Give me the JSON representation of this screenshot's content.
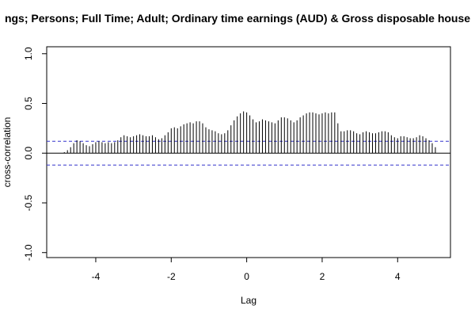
{
  "chart_data": {
    "type": "bar",
    "title": "ngs; Persons; Full Time; Adult; Ordinary time earnings (AUD) & Gross disposable house",
    "xlabel": "Lag",
    "ylabel": "cross-correlation",
    "xlim": [
      -5.3,
      5.4
    ],
    "ylim": [
      -1.05,
      1.07
    ],
    "x_ticks": [
      -4,
      -2,
      0,
      2,
      4
    ],
    "x_tick_labels": [
      "-4",
      "-2",
      "0",
      "2",
      "4"
    ],
    "y_ticks": [
      -1,
      -0.5,
      0,
      0.5,
      1
    ],
    "y_tick_labels": [
      "-1.0",
      "-0.5",
      "0.0",
      "0.5",
      "1.0"
    ],
    "confidence_bound": 0.12,
    "colors": {
      "bars": "#000000",
      "confidence": "#3333cc",
      "zero_line": "#000000"
    },
    "lags": [
      -5.0,
      -4.9167,
      -4.8333,
      -4.75,
      -4.6667,
      -4.5833,
      -4.5,
      -4.4167,
      -4.3333,
      -4.25,
      -4.1667,
      -4.0833,
      -4.0,
      -3.9167,
      -3.8333,
      -3.75,
      -3.6667,
      -3.5833,
      -3.5,
      -3.4167,
      -3.3333,
      -3.25,
      -3.1667,
      -3.0833,
      -3.0,
      -2.9167,
      -2.8333,
      -2.75,
      -2.6667,
      -2.5833,
      -2.5,
      -2.4167,
      -2.3333,
      -2.25,
      -2.1667,
      -2.0833,
      -2.0,
      -1.9167,
      -1.8333,
      -1.75,
      -1.6667,
      -1.5833,
      -1.5,
      -1.4167,
      -1.3333,
      -1.25,
      -1.1667,
      -1.0833,
      -1.0,
      -0.9167,
      -0.8333,
      -0.75,
      -0.6667,
      -0.5833,
      -0.5,
      -0.4167,
      -0.3333,
      -0.25,
      -0.1667,
      -0.0833,
      0.0,
      0.0833,
      0.1667,
      0.25,
      0.3333,
      0.4167,
      0.5,
      0.5833,
      0.6667,
      0.75,
      0.8333,
      0.9167,
      1.0,
      1.0833,
      1.1667,
      1.25,
      1.3333,
      1.4167,
      1.5,
      1.5833,
      1.6667,
      1.75,
      1.8333,
      1.9167,
      2.0,
      2.0833,
      2.1667,
      2.25,
      2.3333,
      2.4167,
      2.5,
      2.5833,
      2.6667,
      2.75,
      2.8333,
      2.9167,
      3.0,
      3.0833,
      3.1667,
      3.25,
      3.3333,
      3.4167,
      3.5,
      3.5833,
      3.6667,
      3.75,
      3.8333,
      3.9167,
      4.0,
      4.0833,
      4.1667,
      4.25,
      4.3333,
      4.4167,
      4.5,
      4.5833,
      4.6667,
      4.75,
      4.8333,
      4.9167,
      5.0
    ],
    "values": [
      0.0,
      0.0,
      0.01,
      0.03,
      0.06,
      0.1,
      0.13,
      0.12,
      0.1,
      0.08,
      0.07,
      0.09,
      0.11,
      0.12,
      0.11,
      0.1,
      0.11,
      0.1,
      0.11,
      0.13,
      0.16,
      0.18,
      0.17,
      0.16,
      0.17,
      0.18,
      0.19,
      0.18,
      0.17,
      0.17,
      0.18,
      0.16,
      0.14,
      0.15,
      0.18,
      0.21,
      0.25,
      0.26,
      0.25,
      0.27,
      0.29,
      0.3,
      0.31,
      0.3,
      0.32,
      0.32,
      0.3,
      0.26,
      0.24,
      0.23,
      0.22,
      0.2,
      0.19,
      0.2,
      0.23,
      0.28,
      0.33,
      0.37,
      0.4,
      0.42,
      0.41,
      0.38,
      0.34,
      0.31,
      0.32,
      0.34,
      0.33,
      0.32,
      0.31,
      0.3,
      0.33,
      0.36,
      0.36,
      0.35,
      0.33,
      0.31,
      0.33,
      0.36,
      0.38,
      0.4,
      0.41,
      0.41,
      0.4,
      0.39,
      0.4,
      0.41,
      0.4,
      0.41,
      0.41,
      0.3,
      0.22,
      0.22,
      0.23,
      0.23,
      0.22,
      0.2,
      0.19,
      0.21,
      0.22,
      0.21,
      0.2,
      0.2,
      0.21,
      0.22,
      0.22,
      0.21,
      0.18,
      0.16,
      0.15,
      0.17,
      0.17,
      0.16,
      0.15,
      0.15,
      0.16,
      0.18,
      0.17,
      0.15,
      0.13,
      0.1,
      0.06
    ]
  }
}
